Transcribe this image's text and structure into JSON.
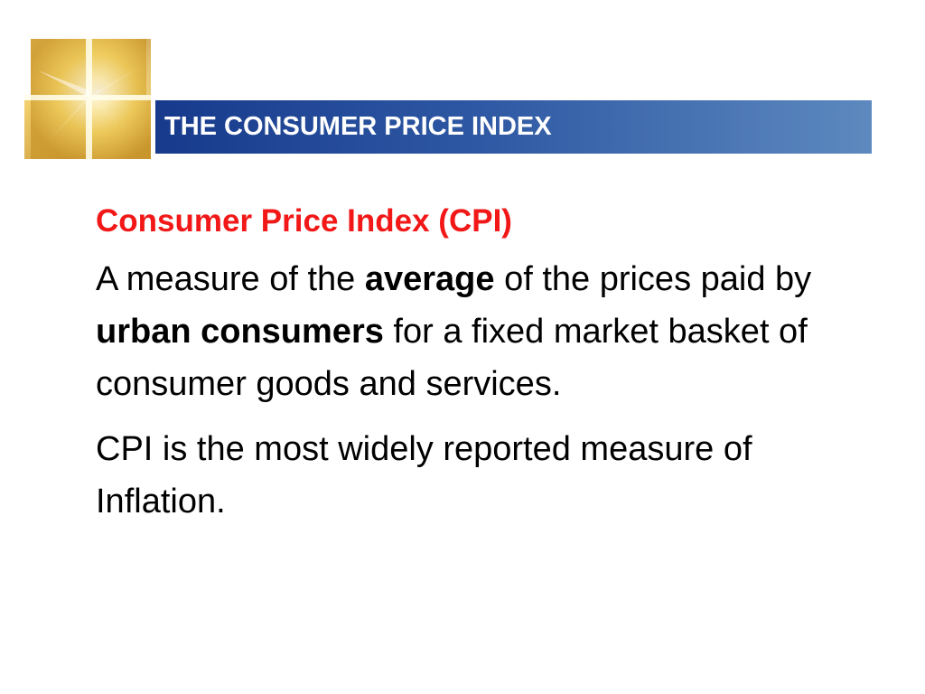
{
  "slide": {
    "title": "THE CONSUMER PRICE INDEX",
    "heading": "Consumer Price Index (CPI)",
    "definition": {
      "part1": "A measure of the ",
      "bold1": "average",
      "part2": " of the prices paid by ",
      "bold2": "urban consumers",
      "part3": " for a fixed market basket of consumer goods and services."
    },
    "statement": "CPI is the most widely reported measure of Inflation."
  },
  "colors": {
    "title_bar_dark": "#173a8c",
    "title_bar_light": "#5d89bf",
    "heading": "#f21818",
    "logo_gold": "#e0b23a"
  },
  "icons": {
    "logo": "gold-window-logo-icon"
  }
}
